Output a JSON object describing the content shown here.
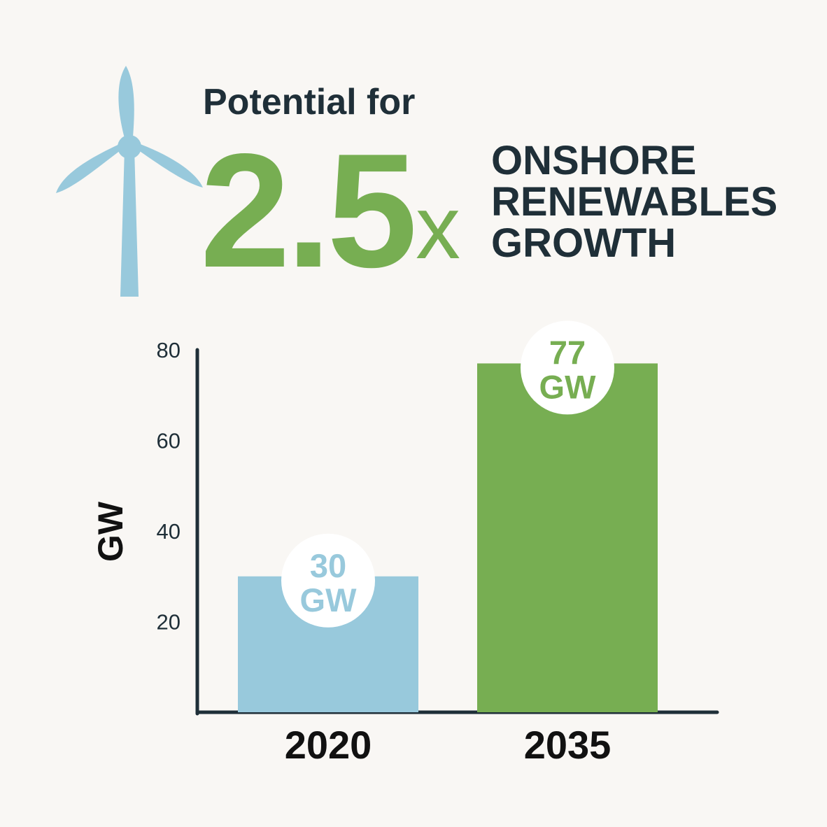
{
  "header": {
    "line1": "Potential for",
    "multiplier": "2.5",
    "multiplier_suffix": "x",
    "lines": [
      "ONSHORE",
      "RENEWABLES",
      "GROWTH"
    ]
  },
  "icon": "wind-turbine-icon",
  "colors": {
    "background": "#f9f7f4",
    "green": "#77ae52",
    "blue": "#98c9dc",
    "dark": "#1f2f38"
  },
  "chart_data": {
    "type": "bar",
    "categories": [
      "2020",
      "2035"
    ],
    "values": [
      30,
      77
    ],
    "data_labels": [
      [
        "30",
        "GW"
      ],
      [
        "77",
        "GW"
      ]
    ],
    "bar_colors": [
      "#98c9dc",
      "#77ae52"
    ],
    "label_colors": [
      "#98c9dc",
      "#77ae52"
    ],
    "ylabel": "GW",
    "ylim": [
      0,
      80
    ],
    "yticks": [
      20,
      40,
      60,
      80
    ],
    "grid": false
  }
}
